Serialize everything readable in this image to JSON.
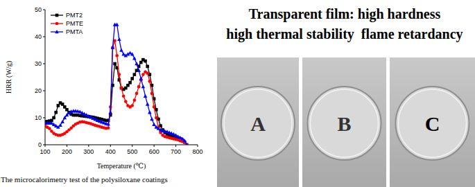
{
  "chart_data": {
    "type": "line",
    "x_label": "Temperature (℃)",
    "y_label": "HRR (W/g)",
    "caption": "The microcalorimetry test of the polysiloxane coatings",
    "x": [
      100,
      110,
      120,
      130,
      140,
      150,
      160,
      170,
      180,
      190,
      200,
      210,
      220,
      230,
      240,
      250,
      260,
      270,
      280,
      290,
      300,
      310,
      320,
      330,
      340,
      350,
      360,
      370,
      380,
      390,
      400,
      410,
      420,
      430,
      440,
      450,
      460,
      470,
      480,
      490,
      500,
      510,
      520,
      530,
      540,
      550,
      560,
      570,
      580,
      590,
      600,
      610,
      620,
      630,
      640,
      650,
      660,
      670,
      680,
      690,
      700,
      710,
      720,
      730,
      740,
      750
    ],
    "series": [
      {
        "name": "PMT2",
        "color": "#000000",
        "marker": "square",
        "values": [
          8.5,
          8.6,
          8.8,
          9,
          10,
          12,
          14.5,
          15.5,
          15,
          14,
          13,
          12,
          11.3,
          11,
          11,
          11,
          10.8,
          10.7,
          10.6,
          10.5,
          10.4,
          10.3,
          10.2,
          10,
          9.8,
          9.6,
          9.4,
          9.2,
          9,
          9,
          11,
          22,
          30,
          28.5,
          24,
          21,
          20.5,
          21,
          22,
          23,
          24.5,
          26,
          27.5,
          29,
          30.5,
          31.5,
          31,
          29,
          26,
          22,
          17,
          13,
          9.5,
          7,
          5.5,
          4.5,
          4,
          3.5,
          3.2,
          3,
          2.8,
          2.5,
          2.2,
          1.8,
          1,
          0
        ]
      },
      {
        "name": "PMTE",
        "color": "#ff0000",
        "marker": "circle",
        "values": [
          7,
          6.5,
          6,
          5,
          4.2,
          3.8,
          3.5,
          3.5,
          3.8,
          4.2,
          4.8,
          5.5,
          6.2,
          7,
          7.6,
          8,
          8.4,
          8.5,
          8.4,
          8.2,
          8,
          7.8,
          7.5,
          7.2,
          7,
          6.8,
          6.5,
          6.3,
          6.1,
          6.2,
          14,
          36,
          38.5,
          33,
          26,
          21,
          18,
          16,
          14.5,
          14,
          14.5,
          16.5,
          19,
          21.5,
          24,
          26,
          27,
          26.5,
          23.5,
          19,
          14,
          10,
          6.5,
          4.5,
          3.5,
          3,
          2.8,
          2.6,
          2.4,
          2.2,
          2,
          1.8,
          1.5,
          1.2,
          0.8,
          0
        ]
      },
      {
        "name": "PMTA",
        "color": "#0000ff",
        "marker": "triangle",
        "values": [
          8,
          8,
          8,
          8,
          7.5,
          7,
          6.5,
          7.2,
          8.5,
          10,
          11,
          11.8,
          12.3,
          12.5,
          12.5,
          12.4,
          12.2,
          11.8,
          11.4,
          11,
          10.6,
          10.2,
          9.8,
          9.4,
          9,
          8.7,
          8.4,
          8.1,
          7.8,
          7.6,
          12,
          36,
          44.5,
          44.5,
          39,
          35,
          33.5,
          33,
          33.5,
          34,
          33.5,
          32,
          30,
          27.5,
          24.5,
          21.5,
          18,
          15,
          12,
          9.5,
          7.5,
          6.5,
          6,
          5.5,
          5.2,
          5,
          4.8,
          4.5,
          4.2,
          3.9,
          3.5,
          3,
          2.6,
          2.2,
          1.5,
          0
        ]
      }
    ],
    "xlim": [
      100,
      800
    ],
    "xticks": [
      100,
      200,
      300,
      400,
      500,
      600,
      700,
      800
    ],
    "ylim": [
      0,
      50
    ],
    "yticks": [
      0,
      10,
      20,
      30,
      40,
      50
    ],
    "legend": "upper-left",
    "grid": false
  },
  "side_panel": {
    "headline": [
      "Transparent film: high hardness",
      "high thermal stability  flame retardancy"
    ],
    "samples": [
      "A",
      "B",
      "C"
    ]
  }
}
